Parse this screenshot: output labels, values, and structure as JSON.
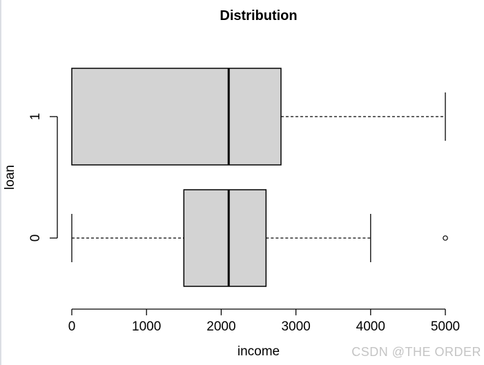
{
  "figure": {
    "watermark": "CSDN @THE ORDER"
  },
  "colors": {
    "background": "#ffffff",
    "box_fill": "#d3d3d3",
    "line": "#000000",
    "watermark": "#c4c4c4",
    "left_border": "#dbdee4"
  },
  "chart_data": {
    "type": "boxplot",
    "orientation": "horizontal",
    "title": "Distribution",
    "xlabel": "income",
    "ylabel": "loan",
    "xlim": [
      0,
      5000
    ],
    "xticks": [
      0,
      1000,
      2000,
      3000,
      4000,
      5000
    ],
    "categories": [
      "0",
      "1"
    ],
    "grid": false,
    "legend": null,
    "series": [
      {
        "category": "1",
        "min": 0,
        "q1": 0,
        "median": 2100,
        "q3": 2800,
        "max": 5000,
        "outliers": []
      },
      {
        "category": "0",
        "min": 0,
        "q1": 1500,
        "median": 2100,
        "q3": 2600,
        "max": 4000,
        "outliers": [
          5000
        ]
      }
    ]
  }
}
